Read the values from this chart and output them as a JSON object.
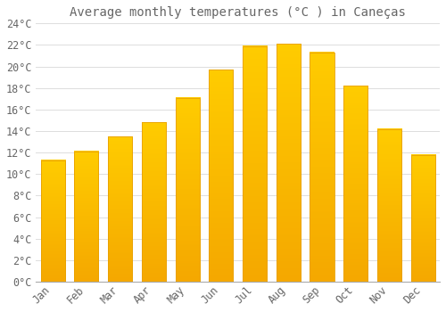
{
  "title": "Average monthly temperatures (°C ) in Caneças",
  "months": [
    "Jan",
    "Feb",
    "Mar",
    "Apr",
    "May",
    "Jun",
    "Jul",
    "Aug",
    "Sep",
    "Oct",
    "Nov",
    "Dec"
  ],
  "values": [
    11.3,
    12.1,
    13.5,
    14.8,
    17.1,
    19.7,
    21.9,
    22.1,
    21.3,
    18.2,
    14.2,
    11.8
  ],
  "bar_color_top": "#FFCC00",
  "bar_color_bottom": "#F5A800",
  "bar_edge_color": "#E8A000",
  "background_color": "#FFFFFF",
  "grid_color": "#DDDDDD",
  "text_color": "#666666",
  "ylim": [
    0,
    24
  ],
  "ytick_step": 2,
  "title_fontsize": 10,
  "tick_fontsize": 8.5,
  "font_family": "monospace"
}
